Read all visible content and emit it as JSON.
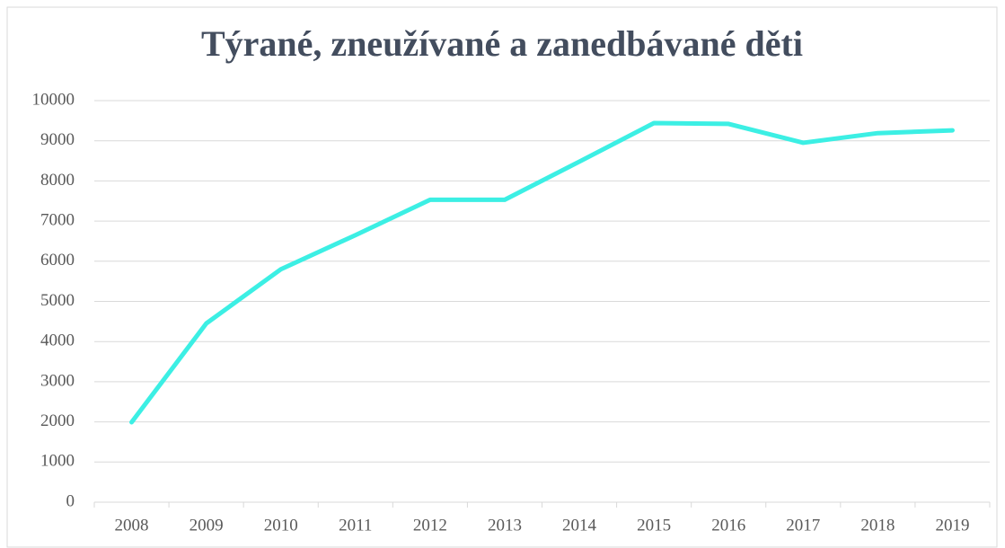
{
  "chart_data": {
    "type": "line",
    "title": "Týrané, zneužívané a zanedbávané děti",
    "categories": [
      "2008",
      "2009",
      "2010",
      "2011",
      "2012",
      "2013",
      "2014",
      "2015",
      "2016",
      "2017",
      "2018",
      "2019"
    ],
    "series": [
      {
        "name": "Týrané, zneužívané a zanedbávané děti",
        "color": "#3cefe4",
        "values": [
          1990,
          4450,
          5800,
          6650,
          7530,
          7530,
          8480,
          9440,
          9420,
          8950,
          9190,
          9260
        ]
      }
    ],
    "ylim": [
      0,
      10000
    ],
    "yticks": [
      0,
      1000,
      2000,
      3000,
      4000,
      5000,
      6000,
      7000,
      8000,
      9000,
      10000
    ],
    "grid": true
  }
}
